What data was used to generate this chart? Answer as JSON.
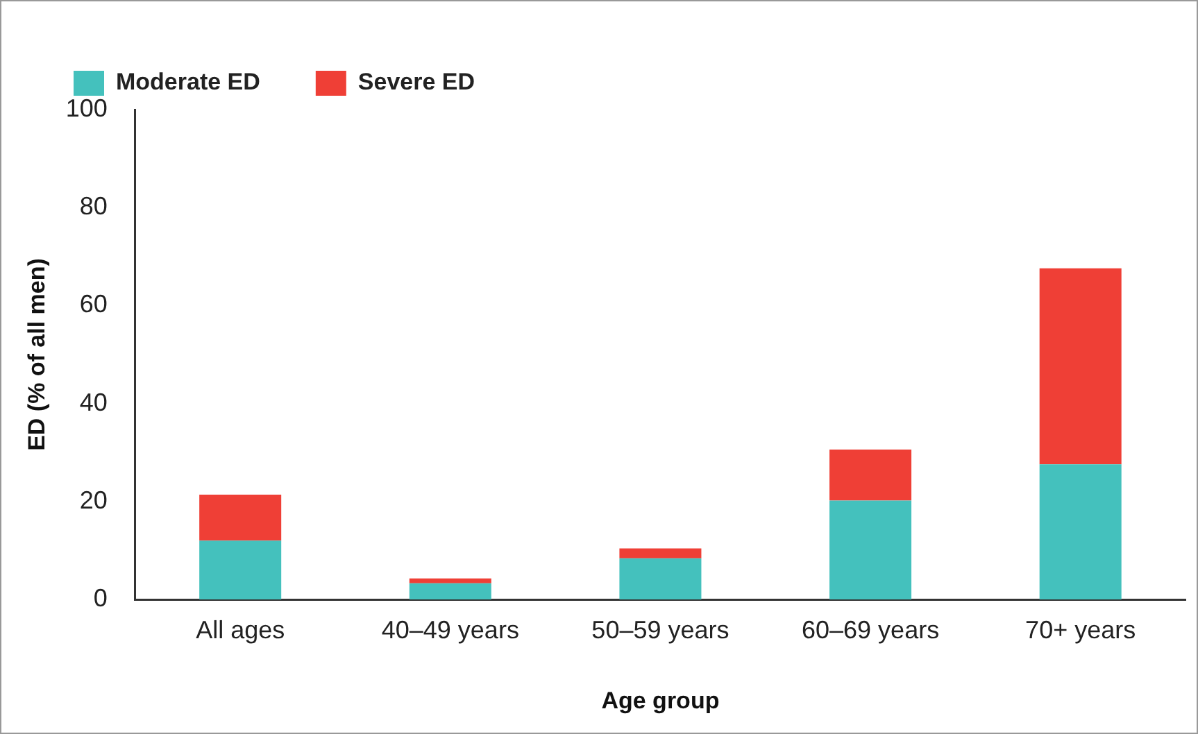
{
  "chart_data": {
    "type": "bar",
    "stacked": true,
    "xlabel": "Age group",
    "ylabel": "ED (% of all men)",
    "categories": [
      "All ages",
      "40–49 years",
      "50–59 years",
      "60–69 years",
      "70+ years"
    ],
    "series": [
      {
        "name": "Moderate ED",
        "color": "#44c1bd",
        "values": [
          12.0,
          3.3,
          8.4,
          20.2,
          27.6
        ]
      },
      {
        "name": "Severe ED",
        "color": "#ef3f36",
        "values": [
          9.4,
          1.0,
          2.0,
          10.4,
          40.0
        ]
      }
    ],
    "ylim": [
      0,
      100
    ],
    "yticks": [
      0,
      20,
      40,
      60,
      80,
      100
    ],
    "grid": false,
    "legend": "top left"
  }
}
